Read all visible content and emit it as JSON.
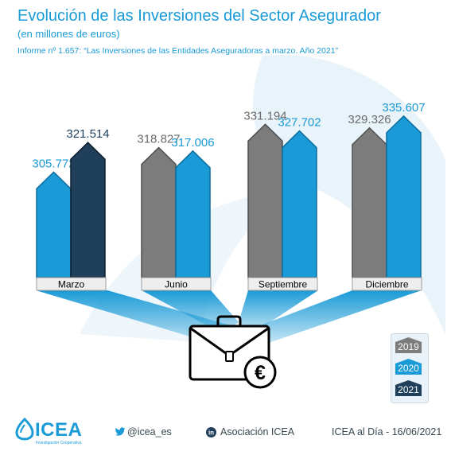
{
  "title": "Evolución de las Inversiones del Sector Asegurador",
  "subtitle": "(en millones de euros)",
  "report": "Informe nº 1.657: “Las Inversiones de las Entidades Aseguradoras a marzo. Año 2021”",
  "colors": {
    "2019": "#7c7c7c",
    "2020": "#1a9ad6",
    "2021": "#1f3f5a",
    "accent": "#1a9ad6"
  },
  "chart_data": {
    "type": "bar",
    "categories": [
      "Marzo",
      "Junio",
      "Septiembre",
      "Diciembre"
    ],
    "bars": [
      [
        {
          "series": "2020",
          "value": 305772,
          "label": "305.772"
        },
        {
          "series": "2021",
          "value": 321514,
          "label": "321.514"
        }
      ],
      [
        {
          "series": "2019",
          "value": 318827,
          "label": "318.827"
        },
        {
          "series": "2020",
          "value": 317006,
          "label": "317.006"
        }
      ],
      [
        {
          "series": "2019",
          "value": 331194,
          "label": "331.194"
        },
        {
          "series": "2020",
          "value": 327702,
          "label": "327.702"
        }
      ],
      [
        {
          "series": "2019",
          "value": 329326,
          "label": "329.326"
        },
        {
          "series": "2020",
          "value": 335607,
          "label": "335.607"
        }
      ]
    ],
    "legend": [
      "2019",
      "2020",
      "2021"
    ],
    "legend_position": "bottom-right"
  },
  "footer": {
    "logo": "ICEA",
    "logo_tagline": "Investigación Cooperativa",
    "twitter": "@icea_es",
    "linkedin": "Asociación ICEA",
    "date": "ICEA al Día - 16/06/2021"
  },
  "icons": [
    "briefcase-icon",
    "euro-icon",
    "twitter-icon",
    "linkedin-icon",
    "icea-logo-icon"
  ]
}
